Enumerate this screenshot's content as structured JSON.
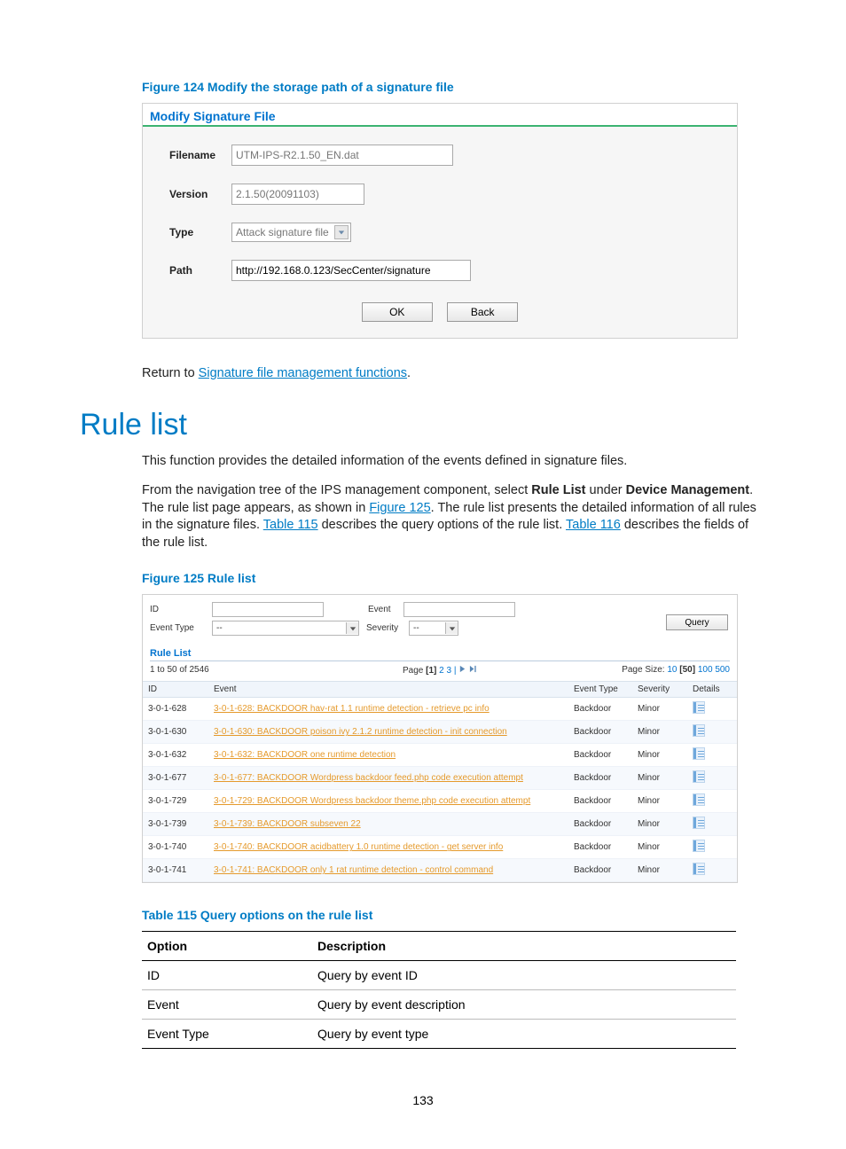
{
  "page_number": "133",
  "colors": {
    "link": "#007cc5",
    "accent_green": "#3cb371",
    "orange_link": "#e59a2c"
  },
  "figure124": {
    "caption": "Figure 124 Modify the storage path of a signature file",
    "panel_title": "Modify Signature File",
    "labels": {
      "filename": "Filename",
      "version": "Version",
      "type": "Type",
      "path": "Path"
    },
    "values": {
      "filename": "UTM-IPS-R2.1.50_EN.dat",
      "version": "2.1.50(20091103)",
      "type": "Attack signature file",
      "path": "http://192.168.0.123/SecCenter/signature"
    },
    "buttons": {
      "ok": "OK",
      "back": "Back"
    }
  },
  "return_text_prefix": "Return to ",
  "return_link": "Signature file management functions",
  "return_text_suffix": ".",
  "section_title": "Rule list",
  "body_p1": "This function provides the detailed information of the events defined in signature files.",
  "body_p2_a": "From the navigation tree of the IPS management component, select ",
  "body_p2_b": " under ",
  "body_p2_c": ". The rule list page appears, as shown in ",
  "body_p2_d": ". The rule list presents the detailed information of all rules in the signature files. ",
  "body_p2_e": " describes the query options of the rule list. ",
  "body_p2_f": " describes the fields of the rule list.",
  "body_bold1": "Rule List",
  "body_bold2": "Device Management",
  "link_fig125": "Figure 125",
  "link_tbl115": "Table 115",
  "link_tbl116": "Table 116",
  "figure125": {
    "caption": "Figure 125 Rule list",
    "filter_labels": {
      "id": "ID",
      "event": "Event",
      "event_type": "Event Type",
      "severity": "Severity"
    },
    "filter_values": {
      "event_type": "--",
      "severity": "--"
    },
    "query_btn": "Query",
    "list_title": "Rule List",
    "count_text": "1 to 50 of 2546",
    "page_text_a": "Page ",
    "page_current": "[1]",
    "page_text_b": " 2 3 | ",
    "page_size_label": "Page Size: ",
    "page_sizes": [
      "10",
      "[50]",
      "100",
      "500"
    ],
    "columns": [
      "ID",
      "Event",
      "Event Type",
      "Severity",
      "Details"
    ],
    "rows": [
      {
        "id": "3-0-1-628",
        "event": "3-0-1-628: BACKDOOR hav-rat 1.1 runtime detection - retrieve pc info",
        "type": "Backdoor",
        "sev": "Minor"
      },
      {
        "id": "3-0-1-630",
        "event": "3-0-1-630: BACKDOOR poison ivy 2.1.2 runtime detection - init connection",
        "type": "Backdoor",
        "sev": "Minor"
      },
      {
        "id": "3-0-1-632",
        "event": "3-0-1-632: BACKDOOR one runtime detection",
        "type": "Backdoor",
        "sev": "Minor"
      },
      {
        "id": "3-0-1-677",
        "event": "3-0-1-677: BACKDOOR Wordpress backdoor feed.php code execution attempt",
        "type": "Backdoor",
        "sev": "Minor"
      },
      {
        "id": "3-0-1-729",
        "event": "3-0-1-729: BACKDOOR Wordpress backdoor theme.php code execution attempt",
        "type": "Backdoor",
        "sev": "Minor"
      },
      {
        "id": "3-0-1-739",
        "event": "3-0-1-739: BACKDOOR subseven 22",
        "type": "Backdoor",
        "sev": "Minor"
      },
      {
        "id": "3-0-1-740",
        "event": "3-0-1-740: BACKDOOR acidbattery 1.0 runtime detection - get server info",
        "type": "Backdoor",
        "sev": "Minor"
      },
      {
        "id": "3-0-1-741",
        "event": "3-0-1-741: BACKDOOR only 1 rat runtime detection - control command",
        "type": "Backdoor",
        "sev": "Minor"
      }
    ]
  },
  "table115": {
    "caption": "Table 115 Query options on the rule list",
    "columns": [
      "Option",
      "Description"
    ],
    "rows": [
      [
        "ID",
        "Query by event ID"
      ],
      [
        "Event",
        "Query by event description"
      ],
      [
        "Event Type",
        "Query by event type"
      ]
    ]
  }
}
